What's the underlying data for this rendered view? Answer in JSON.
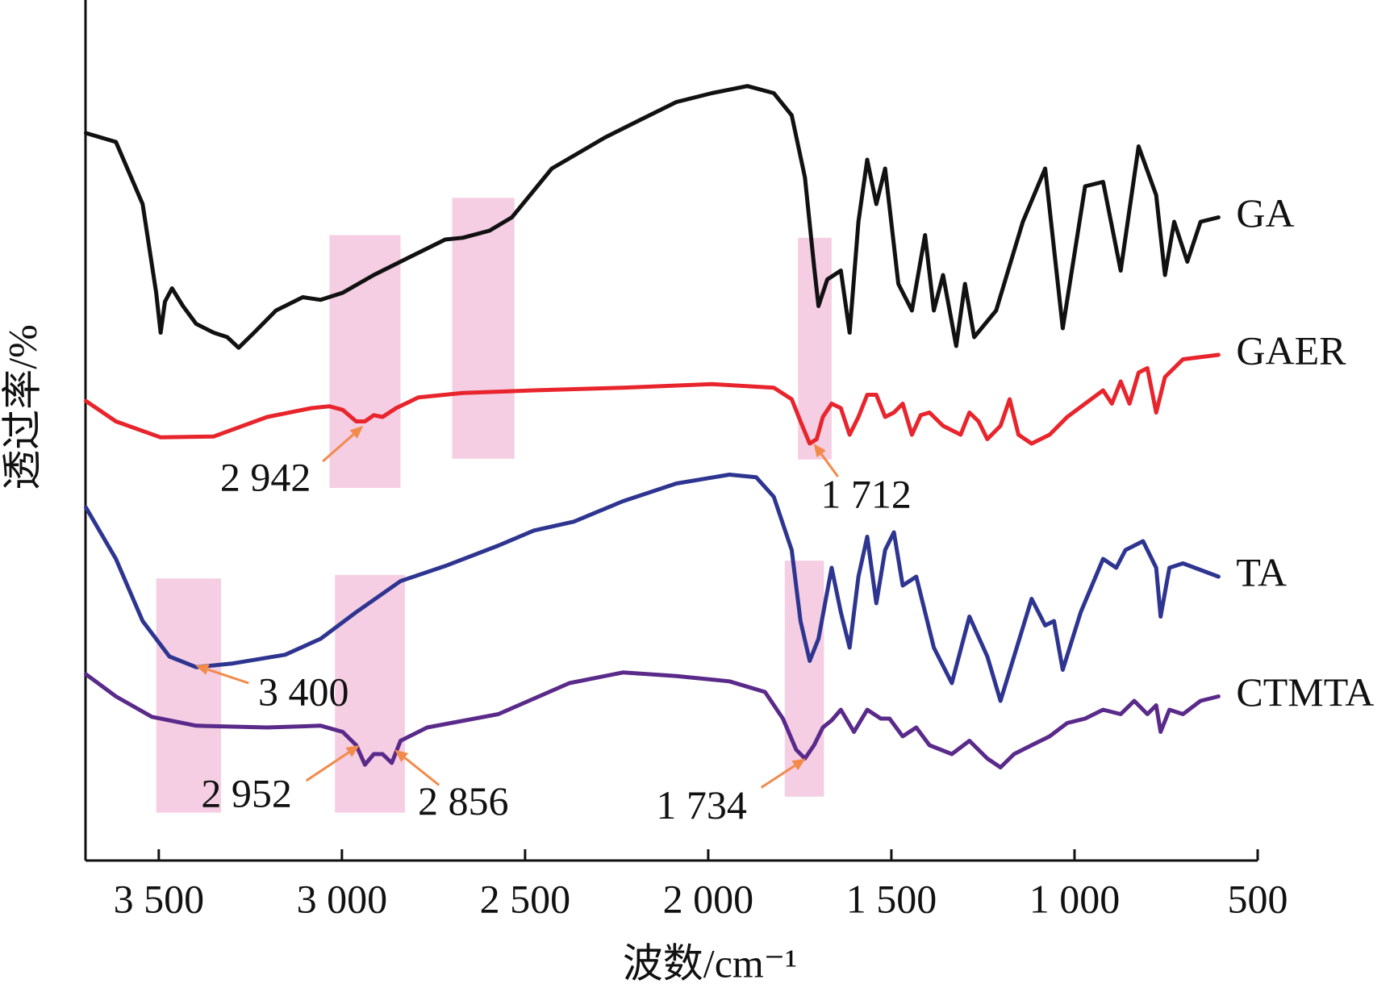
{
  "chart_data": {
    "type": "line",
    "xlabel": "波数/cm⁻¹",
    "ylabel": "透过率/%",
    "xlim": [
      3700,
      500
    ],
    "ylim": [
      0,
      97
    ],
    "xticks": [
      {
        "value": 3500,
        "label": "3 500"
      },
      {
        "value": 3000,
        "label": "3 000"
      },
      {
        "value": 2500,
        "label": "2 500"
      },
      {
        "value": 2000,
        "label": "2 000"
      },
      {
        "value": 1500,
        "label": "1 500"
      },
      {
        "value": 1000,
        "label": "1 000"
      },
      500
    ],
    "series": [
      {
        "name": "GA",
        "color": "#111111",
        "x": [
          3699,
          3617,
          3544,
          3507,
          3495,
          3483,
          3464,
          3434,
          3398,
          3350,
          3313,
          3282,
          3240,
          3180,
          3107,
          3058,
          2998,
          2913,
          2816,
          2718,
          2670,
          2597,
          2536,
          2427,
          2282,
          2185,
          2087,
          1990,
          1893,
          1821,
          1772,
          1736,
          1711,
          1699,
          1675,
          1638,
          1614,
          1590,
          1566,
          1541,
          1517,
          1481,
          1444,
          1408,
          1384,
          1359,
          1323,
          1299,
          1274,
          1214,
          1141,
          1080,
          1032,
          971,
          922,
          874,
          825,
          777,
          753,
          728,
          692,
          656,
          607
        ],
        "values": [
          82,
          81,
          74,
          64,
          59.5,
          63,
          64.5,
          62.5,
          60.5,
          59.5,
          59,
          57.8,
          59.5,
          62,
          63.5,
          63.2,
          64,
          66,
          68,
          70,
          70.2,
          71,
          72.5,
          78,
          81.5,
          83.5,
          85.5,
          86.5,
          87.3,
          86.5,
          84,
          77,
          67,
          62.5,
          65.5,
          66.5,
          59.5,
          72,
          79,
          74,
          78,
          65,
          62,
          70.5,
          62,
          66,
          58,
          65,
          59,
          62,
          72,
          78,
          60,
          76,
          76.5,
          66.5,
          80.5,
          75,
          66,
          72,
          67.5,
          72,
          72.5
        ]
      },
      {
        "name": "GAER",
        "color": "#e8242c",
        "x": [
          3699,
          3617,
          3495,
          3350,
          3204,
          3083,
          3034,
          2998,
          2961,
          2937,
          2913,
          2889,
          2852,
          2791,
          2670,
          2476,
          2233,
          1990,
          1821,
          1772,
          1748,
          1723,
          1704,
          1687,
          1663,
          1638,
          1614,
          1590,
          1566,
          1541,
          1517,
          1493,
          1469,
          1444,
          1420,
          1396,
          1359,
          1311,
          1287,
          1262,
          1238,
          1202,
          1177,
          1153,
          1117,
          1068,
          1020,
          971,
          922,
          898,
          874,
          850,
          825,
          801,
          777,
          753,
          704,
          607
        ],
        "values": [
          51.8,
          49.5,
          47.7,
          47.8,
          50,
          51,
          51.2,
          50.8,
          49.5,
          49.5,
          50.2,
          50,
          51,
          52.2,
          52.7,
          53,
          53.3,
          53.7,
          53.3,
          52,
          49.5,
          47,
          47.5,
          50,
          51.5,
          51,
          48,
          50,
          52.5,
          52.5,
          50,
          50.5,
          51.5,
          48,
          50.2,
          50.5,
          49,
          48,
          50.5,
          49.5,
          47.5,
          49,
          52,
          48,
          47,
          48,
          50,
          51.5,
          53,
          51.5,
          54,
          51.5,
          55,
          55.5,
          50.5,
          54.5,
          56.5,
          57
        ]
      },
      {
        "name": "TA",
        "color": "#2e3590",
        "x": [
          3699,
          3617,
          3544,
          3471,
          3398,
          3301,
          3155,
          3058,
          2961,
          2840,
          2718,
          2573,
          2476,
          2367,
          2233,
          2087,
          1942,
          1869,
          1821,
          1772,
          1748,
          1723,
          1699,
          1663,
          1638,
          1614,
          1590,
          1566,
          1541,
          1517,
          1493,
          1469,
          1432,
          1384,
          1335,
          1287,
          1238,
          1202,
          1165,
          1117,
          1080,
          1056,
          1032,
          983,
          922,
          886,
          861,
          813,
          777,
          765,
          741,
          704,
          607
        ],
        "values": [
          39.8,
          34,
          27,
          23,
          21.8,
          22.2,
          23.2,
          25,
          28,
          31.5,
          33.2,
          35.5,
          37.2,
          38.2,
          40.5,
          42.5,
          43.5,
          43.2,
          41,
          35,
          27,
          22.5,
          25,
          33,
          28,
          24,
          32,
          36.5,
          29,
          35,
          37,
          31,
          32,
          24,
          20,
          27.5,
          23,
          18,
          23,
          29.5,
          26.5,
          27,
          21.5,
          28,
          34,
          33,
          35,
          36,
          33,
          27.5,
          33,
          33.5,
          32
        ]
      },
      {
        "name": "CTMTA",
        "color": "#5a2a8a",
        "x": [
          3699,
          3617,
          3519,
          3398,
          3204,
          3058,
          2998,
          2961,
          2937,
          2913,
          2889,
          2864,
          2840,
          2767,
          2573,
          2379,
          2233,
          2087,
          1942,
          1845,
          1796,
          1760,
          1736,
          1711,
          1687,
          1663,
          1638,
          1602,
          1566,
          1529,
          1505,
          1469,
          1432,
          1396,
          1335,
          1287,
          1238,
          1202,
          1165,
          1117,
          1068,
          1020,
          971,
          922,
          874,
          837,
          801,
          777,
          765,
          741,
          704,
          656,
          607
        ],
        "values": [
          21,
          18.5,
          16.2,
          15.2,
          15,
          15.2,
          14.5,
          13,
          10.8,
          12,
          12,
          11,
          13.5,
          15,
          16.5,
          20,
          21.2,
          20.8,
          20.2,
          19,
          16,
          12.5,
          11.5,
          13,
          15,
          15.8,
          17,
          14.5,
          17,
          16,
          16,
          14,
          15,
          13,
          12,
          13.5,
          11.5,
          10.5,
          12,
          13,
          14,
          15.5,
          16,
          17,
          16.5,
          18,
          16.5,
          17.5,
          14.5,
          17,
          16.5,
          18,
          18.5
        ]
      }
    ],
    "bands": [
      {
        "x": [
          3034,
          2840
        ],
        "y": [
          42,
          70.5
        ]
      },
      {
        "x": [
          2699,
          2529
        ],
        "y": [
          45.3,
          74.7
        ]
      },
      {
        "x": [
          1755,
          1663
        ],
        "y": [
          45.2,
          70.2
        ]
      },
      {
        "x": [
          3507,
          3330
        ],
        "y": [
          5.4,
          31.8
        ]
      },
      {
        "x": [
          3019,
          2828
        ],
        "y": [
          5.4,
          32.2
        ]
      },
      {
        "x": [
          1791,
          1684
        ],
        "y": [
          7.2,
          33.8
        ]
      }
    ],
    "annotations": [
      {
        "x": 2942,
        "y": 49,
        "label": "2 942"
      },
      {
        "x": 1712,
        "y": 47,
        "label": "1 712"
      },
      {
        "x": 3400,
        "y": 22,
        "label": "3 400"
      },
      {
        "x": 2952,
        "y": 13,
        "label": "2 952"
      },
      {
        "x": 2856,
        "y": 12.5,
        "label": "2 856"
      },
      {
        "x": 1734,
        "y": 11.5,
        "label": "1 734"
      }
    ]
  }
}
